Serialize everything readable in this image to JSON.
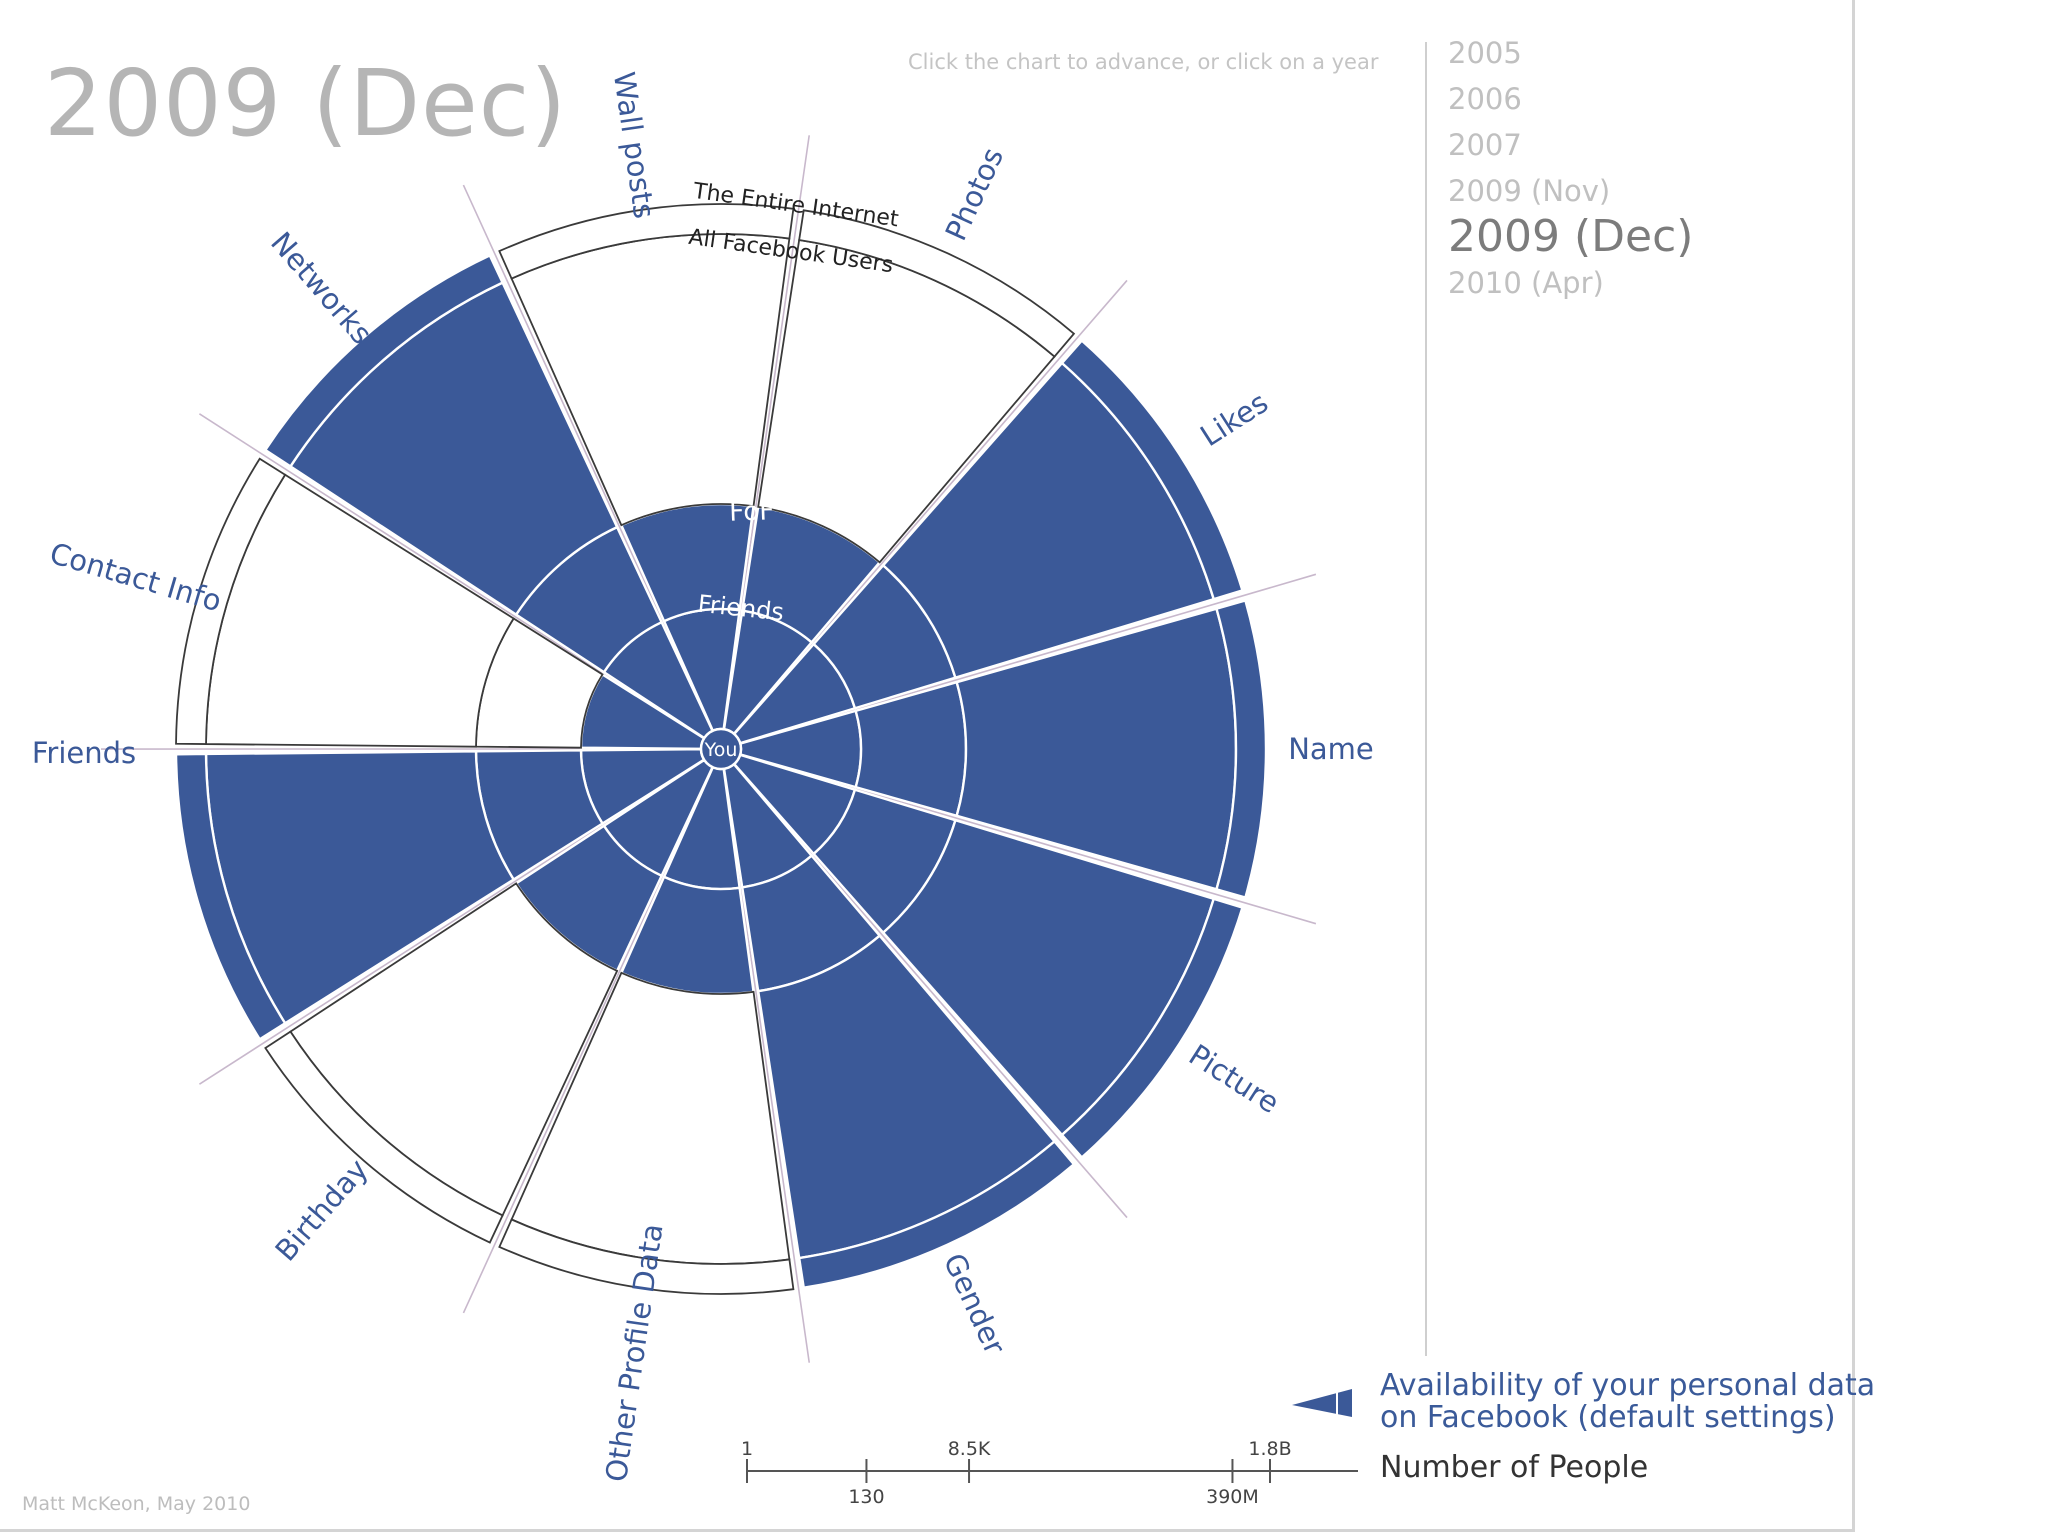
{
  "header": {
    "current_year_title": "2009 (Dec)",
    "instruction": "Click the chart to advance, or click on a year"
  },
  "years": [
    "2005",
    "2006",
    "2007",
    "2009 (Nov)",
    "2009 (Dec)",
    "2010 (Apr)"
  ],
  "current_year": "2009 (Dec)",
  "legend": {
    "availability_line1": "Availability of your personal data",
    "availability_line2": "on Facebook (default settings)",
    "number_of_people": "Number of People"
  },
  "credit": "Matt McKeon, May 2010",
  "colors": {
    "filled": "#3b5998",
    "outline": "#3a3a3a",
    "label": "#3b5998",
    "spoke": "#c8b8cc"
  },
  "chart_data": {
    "type": "radial",
    "title": "2009 (Dec)",
    "center_label": "You",
    "rings": [
      "You",
      "Friends",
      "FoF",
      "All Facebook Users",
      "The Entire Internet"
    ],
    "ring_labels": {
      "fof": "FoF",
      "friends": "Friends",
      "all_facebook_users": "All Facebook Users",
      "entire_internet": "The Entire Internet"
    },
    "ring_people": [
      1,
      130,
      8500,
      390000000,
      1800000000
    ],
    "categories": [
      {
        "name": "Name",
        "level": 5
      },
      {
        "name": "Picture",
        "level": 5
      },
      {
        "name": "Gender",
        "level": 5
      },
      {
        "name": "Other Profile Data",
        "level": 3
      },
      {
        "name": "Birthday",
        "level": 3
      },
      {
        "name": "Friends",
        "level": 5
      },
      {
        "name": "Contact Info",
        "level": 2
      },
      {
        "name": "Networks",
        "level": 5
      },
      {
        "name": "Wall posts",
        "level": 3
      },
      {
        "name": "Photos",
        "level": 3
      },
      {
        "name": "Likes",
        "level": 5
      }
    ],
    "scale_axis": {
      "label": "Number of People",
      "ticks_top": [
        "1",
        "8.5K",
        "1.8B"
      ],
      "ticks_bottom": [
        "130",
        "390M"
      ]
    }
  }
}
